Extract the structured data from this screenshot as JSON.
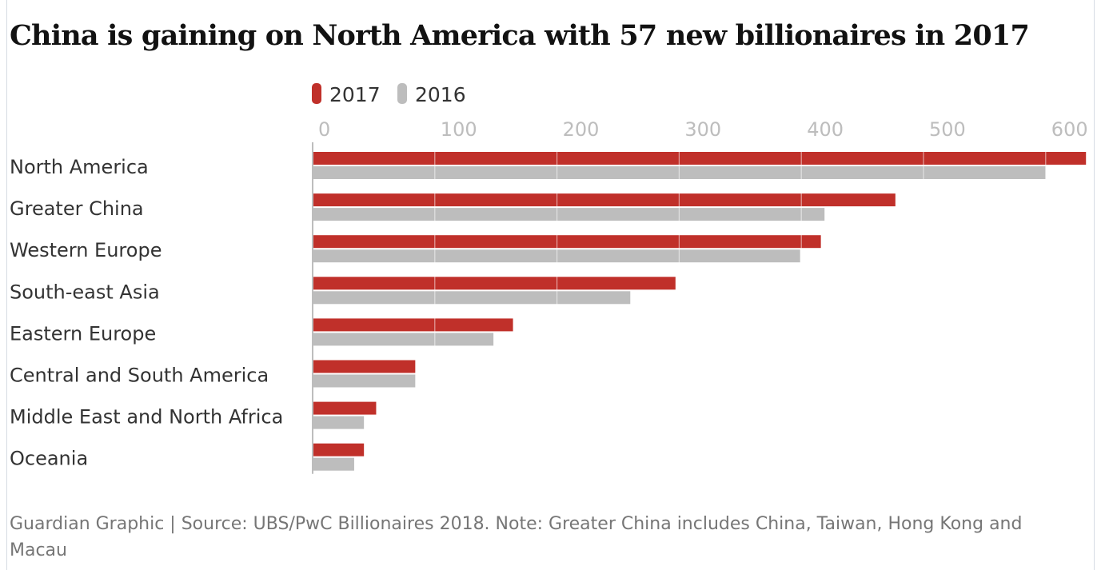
{
  "chart_data": {
    "type": "bar",
    "orientation": "horizontal",
    "title": "China is gaining on North America with 57 new billionaires in 2017",
    "categories": [
      "North America",
      "Greater China",
      "Western Europe",
      "South-east Asia",
      "Eastern Europe",
      "Central and South America",
      "Middle East and North Africa",
      "Oceania"
    ],
    "series": [
      {
        "name": "2017",
        "color": "#c0302a",
        "values": [
          633,
          477,
          416,
          297,
          164,
          84,
          52,
          42
        ]
      },
      {
        "name": "2016",
        "color": "#bdbdbd",
        "values": [
          600,
          419,
          399,
          260,
          148,
          84,
          42,
          34
        ]
      }
    ],
    "xticks": [
      "0",
      "100",
      "200",
      "300",
      "400",
      "500",
      "600"
    ],
    "xlim": [
      0,
      633
    ],
    "grid": true,
    "legend_position": "top",
    "source": "Guardian Graphic | Source: UBS/PwC Billionaires 2018. Note: Greater China includes China, Taiwan, Hong Kong and Macau"
  }
}
